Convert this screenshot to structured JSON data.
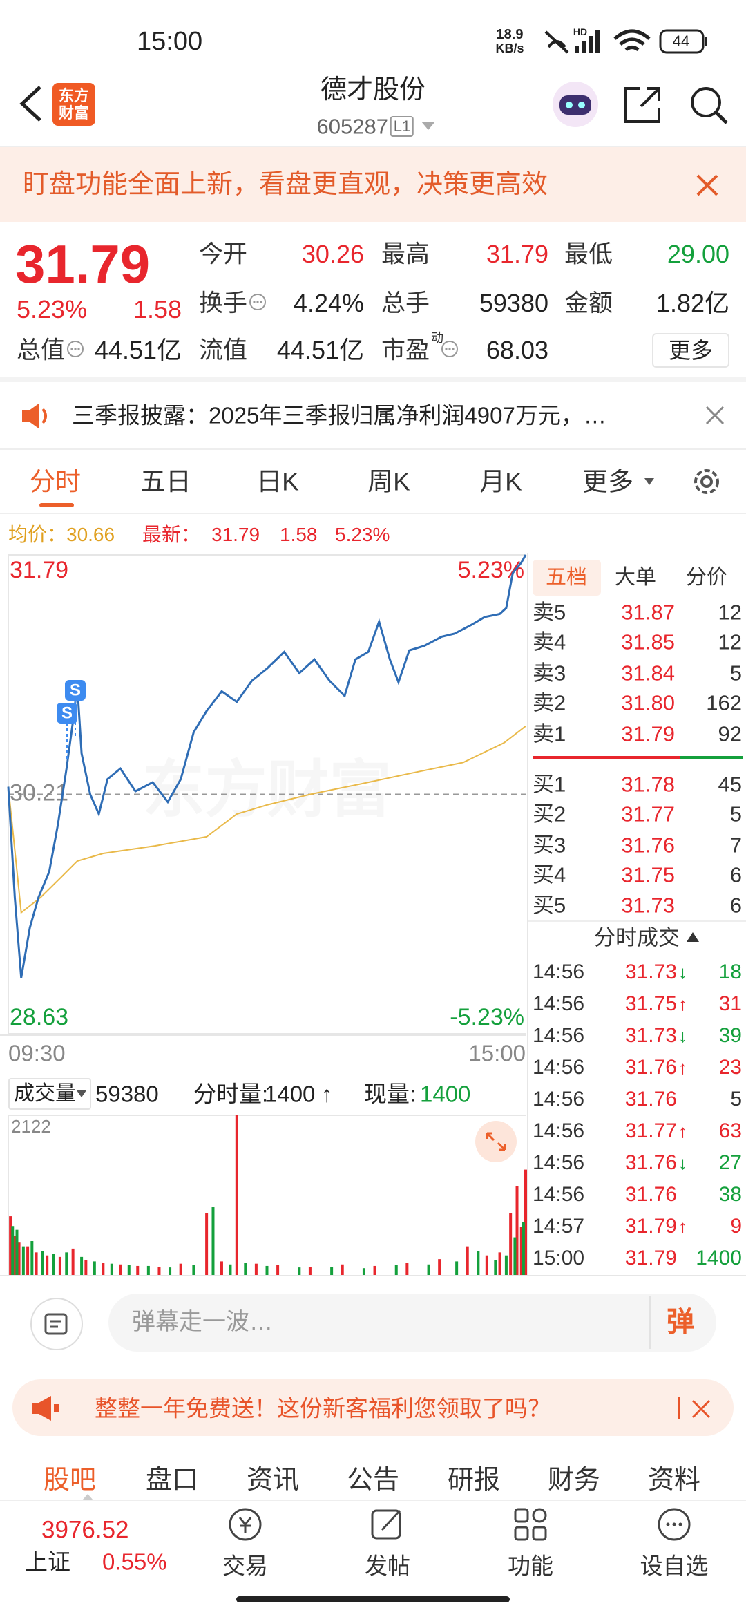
{
  "status_bar": {
    "time": "15:00",
    "net_speed": "18.9",
    "net_unit": "KB/s",
    "network": "HD",
    "battery": "44"
  },
  "header": {
    "logo": [
      "东方",
      "财富"
    ],
    "title": "德才股份",
    "code": "605287",
    "level": "L1"
  },
  "banner": {
    "text": "盯盘功能全面上新，看盘更直观，决策更高效"
  },
  "quote": {
    "price": "31.79",
    "change_pct": "5.23%",
    "change": "1.58",
    "fields": [
      [
        {
          "label": "今开",
          "value": "30.26",
          "color": "#e8262d"
        },
        {
          "label": "最高",
          "value": "31.79",
          "color": "#e8262d"
        },
        {
          "label": "最低",
          "value": "29.00",
          "color": "#14a03c"
        }
      ],
      [
        {
          "label": "换手",
          "value": "4.24%",
          "info": true
        },
        {
          "label": "总手",
          "value": "59380"
        },
        {
          "label": "金额",
          "value": "1.82亿"
        }
      ],
      [
        {
          "label": "总值",
          "value": "44.51亿",
          "info": true
        },
        {
          "label": "流值",
          "value": "44.51亿"
        },
        {
          "label": "市盈",
          "sup": "动",
          "value": "68.03",
          "info": true
        }
      ]
    ],
    "more": "更多"
  },
  "notice": {
    "text": "三季报披露：2025年三季报归属净利润4907万元，…"
  },
  "chart_tabs": [
    "分时",
    "五日",
    "日K",
    "周K",
    "月K",
    "更多"
  ],
  "info_line": {
    "avg_label": "均价：",
    "avg": "30.66",
    "last_label": "最新：",
    "last": "31.79",
    "change": "1.58",
    "change_pct": "5.23%"
  },
  "chart": {
    "type": "line",
    "watermark": "东方财富",
    "xlim": [
      0,
      240
    ],
    "xticks": [
      {
        "value": 0,
        "label": "09:30"
      },
      {
        "value": 240,
        "label": "15:00"
      }
    ],
    "ylim": [
      28.63,
      31.79
    ],
    "yticks": [
      28.63,
      30.21,
      31.79
    ],
    "y2lim": [
      -5.23,
      5.23
    ],
    "y2ticks": [
      {
        "value": -5.23,
        "label": "-5.23%"
      },
      {
        "value": 5.23,
        "label": "5.23%"
      }
    ],
    "series": [
      {
        "color": "#2f6db5",
        "x": [
          0,
          3,
          6,
          10,
          14,
          19,
          23,
          27,
          30,
          32,
          34,
          38,
          42,
          46,
          52,
          59,
          67,
          74,
          80,
          86,
          92,
          99,
          106,
          113,
          120,
          128,
          135,
          142,
          149,
          156,
          161,
          167,
          172,
          177,
          181,
          186,
          193,
          201,
          207,
          215,
          221,
          228,
          231,
          234,
          238,
          240
        ],
        "values": [
          30.26,
          29.53,
          29.0,
          29.33,
          29.53,
          29.7,
          30.01,
          30.38,
          30.69,
          30.93,
          30.48,
          30.21,
          30.08,
          30.31,
          30.38,
          30.23,
          30.29,
          30.16,
          30.31,
          30.62,
          30.76,
          30.89,
          30.82,
          30.96,
          31.04,
          31.15,
          31.01,
          31.1,
          30.96,
          30.86,
          31.1,
          31.15,
          31.35,
          31.1,
          30.95,
          31.16,
          31.19,
          31.25,
          31.27,
          31.33,
          31.38,
          31.4,
          31.44,
          31.67,
          31.74,
          31.79
        ]
      },
      {
        "color": "#e9b949",
        "x": [
          0,
          6,
          15,
          25,
          32,
          44,
          68,
          92,
          106,
          120,
          140,
          164,
          187,
          211,
          230,
          240
        ],
        "values": [
          30.26,
          29.43,
          29.53,
          29.67,
          29.77,
          29.82,
          29.87,
          29.93,
          30.08,
          30.14,
          30.21,
          30.28,
          30.35,
          30.42,
          30.55,
          30.66
        ]
      }
    ],
    "markers": [
      {
        "label": "S"
      },
      {
        "label": "S"
      }
    ]
  },
  "volume": {
    "type": "bar",
    "label": "成交量",
    "total": "59380",
    "minute_label": "分时量:",
    "minute": "1400",
    "minute_arrow": "↑",
    "current_label": "现量:",
    "current": "1400",
    "xlim": [
      0,
      240
    ],
    "ylim": [
      0,
      2122
    ],
    "yticks": [
      2122
    ],
    "series": [
      {
        "color": "#e8262d",
        "x": [
          1,
          3,
          5,
          9,
          13,
          18,
          24,
          30,
          36,
          44,
          52,
          60,
          70,
          80,
          92,
          99,
          106,
          115,
          125,
          140,
          155,
          170,
          185,
          200,
          213,
          222,
          228,
          233,
          236,
          238,
          240
        ],
        "values": [
          780,
          520,
          430,
          380,
          300,
          260,
          240,
          350,
          200,
          160,
          140,
          120,
          110,
          150,
          820,
          180,
          2122,
          150,
          130,
          110,
          140,
          120,
          160,
          210,
          380,
          260,
          300,
          820,
          1180,
          640,
          1400
        ]
      },
      {
        "color": "#14a03c",
        "x": [
          2,
          4,
          7,
          11,
          16,
          21,
          27,
          34,
          40,
          48,
          56,
          65,
          75,
          86,
          95,
          103,
          110,
          120,
          135,
          150,
          165,
          180,
          195,
          208,
          218,
          226,
          231,
          235,
          239
        ],
        "values": [
          650,
          600,
          380,
          450,
          320,
          280,
          300,
          240,
          180,
          150,
          130,
          120,
          100,
          130,
          900,
          140,
          160,
          120,
          100,
          110,
          90,
          130,
          140,
          180,
          320,
          200,
          260,
          500,
          700
        ]
      }
    ]
  },
  "order_book": {
    "tabs": [
      "五档",
      "大单",
      "分价"
    ],
    "asks": [
      [
        "卖5",
        "31.87",
        "12"
      ],
      [
        "卖4",
        "31.85",
        "12"
      ],
      [
        "卖3",
        "31.84",
        "5"
      ],
      [
        "卖2",
        "31.80",
        "162"
      ],
      [
        "卖1",
        "31.79",
        "92"
      ]
    ],
    "bids": [
      [
        "买1",
        "31.78",
        "45"
      ],
      [
        "买2",
        "31.77",
        "5"
      ],
      [
        "买3",
        "31.76",
        "7"
      ],
      [
        "买4",
        "31.75",
        "6"
      ],
      [
        "买5",
        "31.73",
        "6"
      ]
    ]
  },
  "trades": {
    "title": "分时成交",
    "rows": [
      {
        "time": "14:56",
        "price": "31.73",
        "arrow": "↓",
        "volume": "18",
        "color": "#14a03c"
      },
      {
        "time": "14:56",
        "price": "31.75",
        "arrow": "↑",
        "volume": "31",
        "color": "#e8262d"
      },
      {
        "time": "14:56",
        "price": "31.73",
        "arrow": "↓",
        "volume": "39",
        "color": "#14a03c"
      },
      {
        "time": "14:56",
        "price": "31.76",
        "arrow": "↑",
        "volume": "23",
        "color": "#e8262d"
      },
      {
        "time": "14:56",
        "price": "31.76",
        "volume": "5",
        "color": "#333333"
      },
      {
        "time": "14:56",
        "price": "31.77",
        "arrow": "↑",
        "volume": "63",
        "color": "#e8262d"
      },
      {
        "time": "14:56",
        "price": "31.76",
        "arrow": "↓",
        "volume": "27",
        "color": "#14a03c"
      },
      {
        "time": "14:56",
        "price": "31.76",
        "volume": "38",
        "color": "#14a03c"
      },
      {
        "time": "14:57",
        "price": "31.79",
        "arrow": "↑",
        "volume": "9",
        "color": "#e8262d"
      },
      {
        "time": "15:00",
        "price": "31.79",
        "volume": "1400",
        "color": "#14a03c"
      }
    ]
  },
  "comment": {
    "placeholder": "弹幕走一波…",
    "button": "弹"
  },
  "ad": {
    "text": "整整一年免费送！这份新客福利您领取了吗？"
  },
  "sub_tabs": [
    "股吧",
    "盘口",
    "资讯",
    "公告",
    "研报",
    "财务",
    "资料"
  ],
  "bottom_nav": {
    "index": {
      "value": "3976.52",
      "name": "上证",
      "change": "0.55%"
    },
    "items": [
      "交易",
      "发帖",
      "功能",
      "设自选"
    ]
  }
}
